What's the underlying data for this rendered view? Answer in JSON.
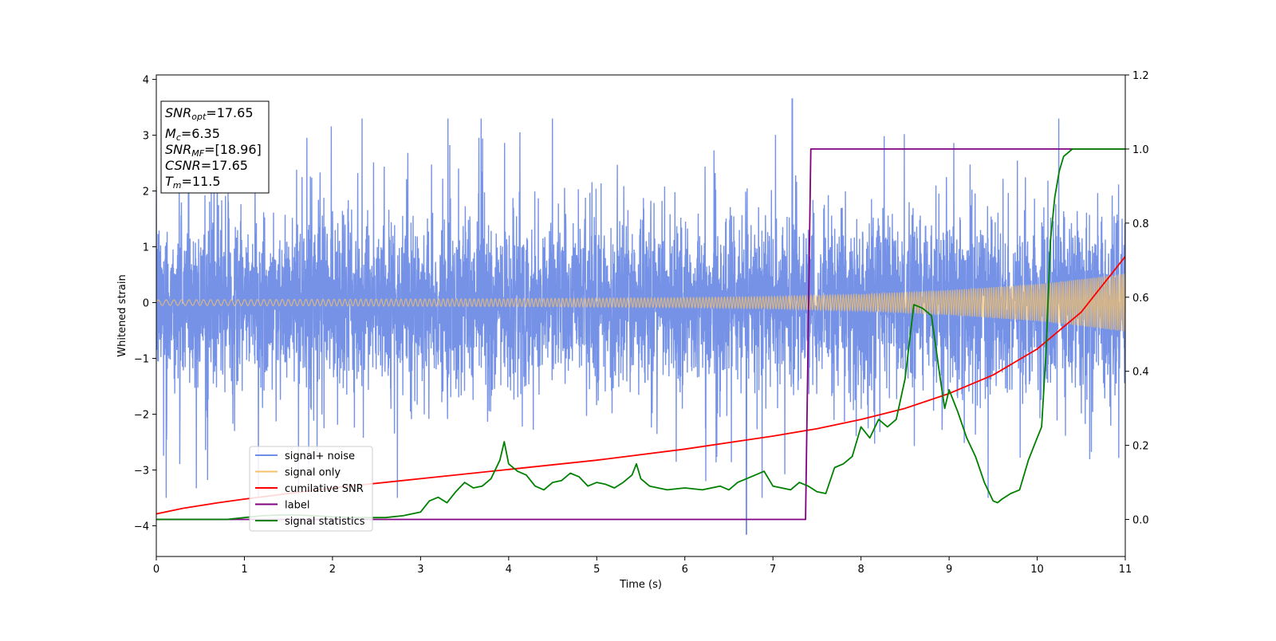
{
  "chart_data": {
    "type": "line",
    "title": "",
    "xlabel": "Time (s)",
    "ylabel": "Whitened strain",
    "xlim": [
      0,
      11
    ],
    "ylim": [
      -4.55,
      4.08
    ],
    "y2lim": [
      -0.1,
      1.2
    ],
    "xticks": [
      0,
      1,
      2,
      3,
      4,
      5,
      6,
      7,
      8,
      9,
      10,
      11
    ],
    "yticks": [
      -4,
      -3,
      -2,
      -1,
      0,
      1,
      2,
      3,
      4
    ],
    "y2ticks": [
      "0.0",
      "0.2",
      "0.4",
      "0.6",
      "0.8",
      "1.0",
      "1.2"
    ],
    "grid": false,
    "legend_position": "lower-left",
    "series": [
      {
        "name": "signal+ noise",
        "axis": "left",
        "color": "#6F8CE6",
        "description_values": {
          "baseline_band": [
            -1.2,
            1.2
          ],
          "max_spike": 3.65,
          "min_spike": -4.15,
          "max_spike_x": 7.22,
          "min_spike_x": 6.7
        }
      },
      {
        "name": "signal only",
        "axis": "left",
        "color": "#F5C26B",
        "envelope": {
          "x": [
            0,
            2,
            4,
            6,
            7,
            8,
            9,
            10,
            10.5,
            11
          ],
          "amp": [
            0.05,
            0.06,
            0.07,
            0.09,
            0.11,
            0.15,
            0.22,
            0.33,
            0.42,
            0.52
          ]
        }
      },
      {
        "name": "cumilative SNR",
        "axis": "right",
        "color": "#FF0000",
        "x": [
          0,
          0.3,
          0.7,
          1,
          2,
          3,
          4,
          5,
          6,
          7,
          7.5,
          8,
          8.5,
          9,
          9.5,
          10,
          10.5,
          11
        ],
        "values": [
          0.015,
          0.03,
          0.045,
          0.055,
          0.085,
          0.11,
          0.135,
          0.16,
          0.19,
          0.225,
          0.245,
          0.27,
          0.3,
          0.34,
          0.39,
          0.46,
          0.56,
          0.71
        ]
      },
      {
        "name": "label",
        "axis": "right",
        "color": "#800080",
        "x": [
          0,
          7.37,
          7.43,
          11
        ],
        "values": [
          0,
          0,
          1,
          1
        ]
      },
      {
        "name": "signal statistics",
        "axis": "right",
        "color": "#008000",
        "x": [
          0,
          0.8,
          1.0,
          1.2,
          1.4,
          1.6,
          1.8,
          2.0,
          2.2,
          2.4,
          2.6,
          2.8,
          3.0,
          3.1,
          3.2,
          3.3,
          3.4,
          3.5,
          3.6,
          3.7,
          3.8,
          3.9,
          3.95,
          4.0,
          4.1,
          4.2,
          4.3,
          4.4,
          4.5,
          4.6,
          4.7,
          4.8,
          4.9,
          5.0,
          5.1,
          5.2,
          5.3,
          5.4,
          5.45,
          5.5,
          5.6,
          5.8,
          6.0,
          6.2,
          6.4,
          6.5,
          6.6,
          6.7,
          6.8,
          6.9,
          7.0,
          7.1,
          7.2,
          7.3,
          7.4,
          7.5,
          7.6,
          7.7,
          7.8,
          7.9,
          8.0,
          8.1,
          8.2,
          8.3,
          8.4,
          8.5,
          8.6,
          8.7,
          8.8,
          8.9,
          8.95,
          9.0,
          9.1,
          9.2,
          9.3,
          9.4,
          9.5,
          9.55,
          9.6,
          9.7,
          9.8,
          9.9,
          10.0,
          10.05,
          10.1,
          10.15,
          10.2,
          10.25,
          10.3,
          10.4,
          10.5,
          11.0
        ],
        "values": [
          0,
          0,
          0.005,
          0.01,
          0.012,
          0.012,
          0.01,
          0.007,
          0.005,
          0.005,
          0.005,
          0.01,
          0.02,
          0.05,
          0.06,
          0.045,
          0.075,
          0.1,
          0.085,
          0.09,
          0.11,
          0.16,
          0.21,
          0.15,
          0.13,
          0.12,
          0.09,
          0.08,
          0.1,
          0.105,
          0.125,
          0.115,
          0.09,
          0.1,
          0.095,
          0.085,
          0.1,
          0.12,
          0.15,
          0.11,
          0.09,
          0.08,
          0.085,
          0.08,
          0.09,
          0.08,
          0.1,
          0.11,
          0.12,
          0.13,
          0.09,
          0.085,
          0.08,
          0.1,
          0.09,
          0.075,
          0.07,
          0.14,
          0.15,
          0.17,
          0.25,
          0.22,
          0.27,
          0.25,
          0.27,
          0.38,
          0.58,
          0.57,
          0.55,
          0.38,
          0.3,
          0.35,
          0.29,
          0.22,
          0.17,
          0.1,
          0.05,
          0.045,
          0.055,
          0.07,
          0.08,
          0.16,
          0.22,
          0.25,
          0.45,
          0.75,
          0.87,
          0.94,
          0.98,
          1.0,
          1.0,
          1.0
        ]
      }
    ],
    "annotation": {
      "lines": [
        {
          "sym": "SNR",
          "sub": "opt",
          "rest": "=17.65"
        },
        {
          "sym": "M",
          "sub": "c",
          "rest": "=6.35"
        },
        {
          "sym": "SNR",
          "sub": "MF",
          "rest": "=[18.96]"
        },
        {
          "sym": "CSNR",
          "sub": "",
          "rest": "=17.65"
        },
        {
          "sym": "T",
          "sub": "m",
          "rest": "=11.5"
        }
      ]
    }
  }
}
